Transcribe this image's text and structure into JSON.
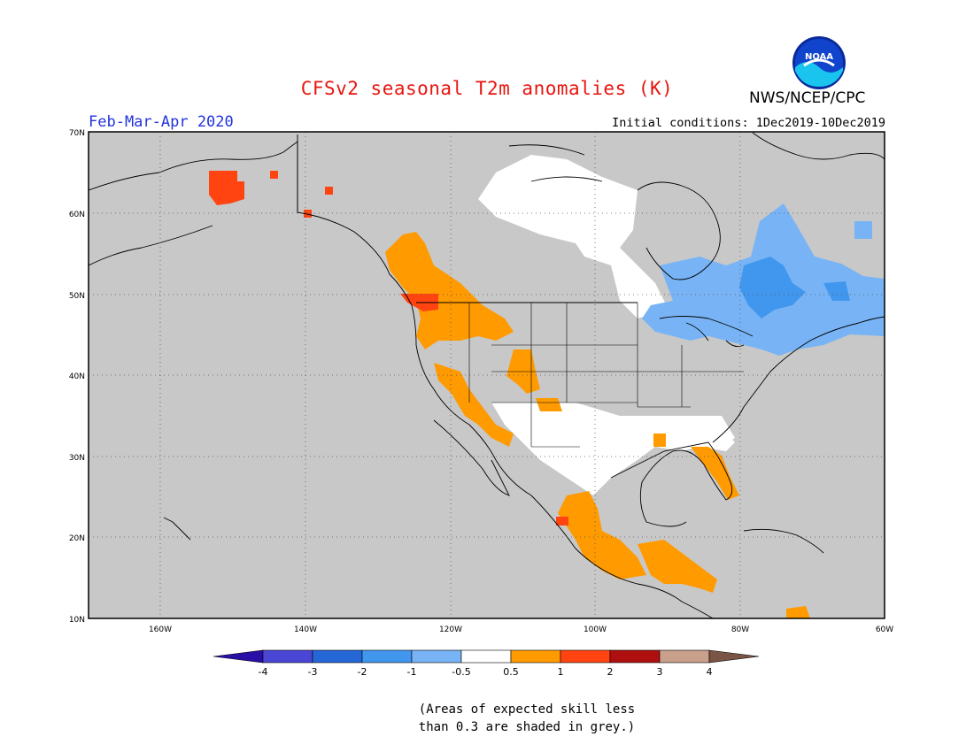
{
  "header": {
    "title": "CFSv2 seasonal T2m anomalies (K)",
    "org": "NWS/NCEP/CPC",
    "season": "Feb-Mar-Apr 2020",
    "initial_conditions": "Initial conditions: 1Dec2019-10Dec2019",
    "logo_text": "NOAA"
  },
  "map": {
    "projection": "lat-lon",
    "lon_range": [
      -172,
      -60
    ],
    "lat_range": [
      10,
      70
    ],
    "lat_ticks": [
      "70N",
      "60N",
      "50N",
      "40N",
      "30N",
      "20N",
      "10N"
    ],
    "lon_ticks": [
      "160W",
      "140W",
      "120W",
      "100W",
      "80W",
      "60W"
    ],
    "grid": "dotted",
    "land_color": "#c8c8c8",
    "anomaly_regions": [
      {
        "name": "alaska-warm",
        "level": "1",
        "color": "#ff4412",
        "lon": [
          -152,
          -150
        ],
        "lat": [
          62,
          65
        ]
      },
      {
        "name": "pacific-northwest-warm",
        "level": "0.5",
        "color": "#ff9a00",
        "lon": [
          -129,
          -112
        ],
        "lat": [
          38,
          57
        ]
      },
      {
        "name": "vancouver-island-warm",
        "level": "1",
        "color": "#ff4412",
        "lon": [
          -128,
          -123
        ],
        "lat": [
          48,
          50
        ]
      },
      {
        "name": "great-basin-warm",
        "level": "0.5",
        "color": "#ff9a00",
        "lon": [
          -118,
          -108
        ],
        "lat": [
          28,
          42
        ]
      },
      {
        "name": "mexico-warm",
        "level": "0.5",
        "color": "#ff9a00",
        "lon": [
          -106,
          -88
        ],
        "lat": [
          13,
          25
        ]
      },
      {
        "name": "central-america-warm",
        "level": "0.5",
        "color": "#ff9a00",
        "lon": [
          -92,
          -84
        ],
        "lat": [
          12,
          18
        ]
      },
      {
        "name": "florida-warm",
        "level": "0.5",
        "color": "#ff9a00",
        "lon": [
          -82,
          -80
        ],
        "lat": [
          26,
          30
        ]
      },
      {
        "name": "canada-near-normal",
        "level": "-0.5 to 0.5",
        "color": "#ffffff",
        "lon": [
          -117,
          -85
        ],
        "lat": [
          50,
          68
        ]
      },
      {
        "name": "southwest-near-normal",
        "level": "-0.5 to 0.5",
        "color": "#ffffff",
        "lon": [
          -114,
          -82
        ],
        "lat": [
          22,
          36
        ]
      },
      {
        "name": "great-lakes-cool",
        "level": "-0.5",
        "color": "#78b4f5",
        "lon": [
          -90,
          -60
        ],
        "lat": [
          42,
          55
        ]
      },
      {
        "name": "quebec-cool",
        "level": "-1",
        "color": "#4196ee",
        "lon": [
          -78,
          -71
        ],
        "lat": [
          47,
          58
        ]
      }
    ]
  },
  "colorbar": {
    "labels": [
      "-4",
      "-3",
      "-2",
      "-1",
      "-0.5",
      "0.5",
      "1",
      "2",
      "3",
      "4"
    ],
    "colors": [
      "#2a0fa6",
      "#4a46d6",
      "#2567d6",
      "#4196ee",
      "#78b4f5",
      "#ffffff",
      "#ff9a00",
      "#ff4412",
      "#b00f0f",
      "#c8a08c",
      "#7a5445"
    ]
  },
  "note": {
    "line1": "(Areas of expected skill less",
    "line2": "than 0.3 are shaded in grey.)"
  }
}
